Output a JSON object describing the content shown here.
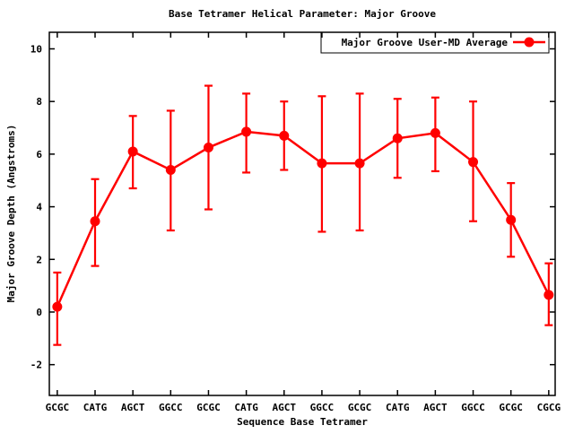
{
  "window": {
    "title": "Base Tetramer Helical Parameter: Major Groove"
  },
  "chart_data": {
    "type": "line",
    "title": "Base Tetramer Helical Parameter: Major Groove",
    "xlabel": "Sequence Base Tetramer",
    "ylabel": "Major Groove Depth (Angstroms)",
    "grid": false,
    "background": "#ffffff",
    "axis_color": "#000000",
    "legend": {
      "label": "Major Groove User-MD Average",
      "position": "top-right",
      "box": true
    },
    "categories": [
      "GCGC",
      "CATG",
      "AGCT",
      "GGCC",
      "GCGC",
      "CATG",
      "AGCT",
      "GGCC",
      "GCGC",
      "CATG",
      "AGCT",
      "GGCC",
      "GCGC",
      "CGCG"
    ],
    "series": [
      {
        "name": "Major Groove User-MD Average",
        "color": "#ff0000",
        "marker": "filled-circle",
        "values": [
          0.2,
          3.45,
          6.1,
          5.4,
          6.25,
          6.85,
          6.7,
          5.65,
          5.65,
          6.6,
          6.8,
          5.7,
          3.5,
          0.65
        ],
        "err_low": [
          -1.25,
          1.75,
          4.7,
          3.1,
          3.9,
          5.3,
          5.4,
          3.05,
          3.1,
          5.1,
          5.35,
          3.45,
          2.1,
          -0.5
        ],
        "err_high": [
          1.5,
          5.05,
          7.45,
          7.65,
          8.6,
          8.3,
          8.0,
          8.2,
          8.3,
          8.1,
          8.15,
          8.0,
          4.9,
          1.85
        ]
      }
    ],
    "yticks": [
      -2,
      0,
      2,
      4,
      6,
      8,
      10
    ],
    "ylim": [
      -3.17,
      10.63
    ],
    "x_index_range": [
      -0.21,
      13.17
    ]
  }
}
